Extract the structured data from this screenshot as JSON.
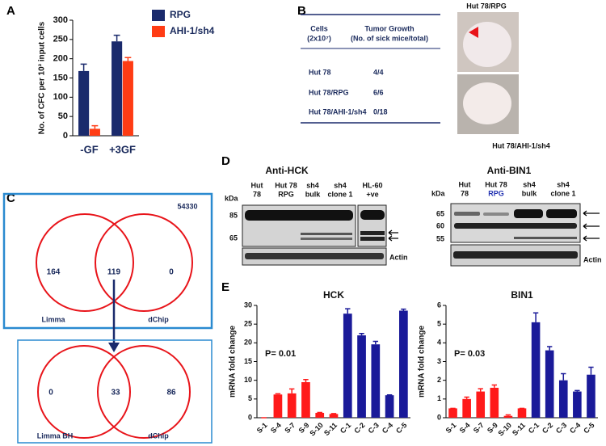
{
  "panel_labels": [
    "A",
    "B",
    "C",
    "D",
    "E"
  ],
  "chart_data": [
    {
      "type": "bar",
      "ylabel": "No. of CFC per 10³ input cells",
      "categories": [
        "-GF",
        "+3GF"
      ],
      "series": [
        {
          "name": "RPG",
          "color": "#1a2a6c",
          "values": [
            168,
            245
          ],
          "errors": [
            18,
            16
          ]
        },
        {
          "name": "AHI-1/sh4",
          "color": "#ff3c14",
          "values": [
            18,
            194
          ],
          "errors": [
            8,
            9
          ]
        }
      ],
      "ylim": [
        0,
        300
      ],
      "yticks": [
        0,
        50,
        100,
        150,
        200,
        250,
        300
      ],
      "grid": false,
      "legend": "right"
    },
    {
      "type": "bar",
      "title": "HCK",
      "ylabel": "mRNA fold change",
      "annotation": "P= 0.01",
      "categories": [
        "S-1",
        "S-4",
        "S-7",
        "S-9",
        "S-10",
        "S-11",
        "C-1",
        "C-2",
        "C-3",
        "C-4",
        "C-5"
      ],
      "values": [
        0,
        6.2,
        6.5,
        9.5,
        1.3,
        1.0,
        27.8,
        22,
        19.6,
        6,
        28.6
      ],
      "errors": [
        0,
        0.2,
        1.2,
        0.7,
        0.1,
        0.1,
        1.3,
        0.5,
        0.8,
        0.1,
        0.4
      ],
      "colors": [
        "#ff1a1a",
        "#ff1a1a",
        "#ff1a1a",
        "#ff1a1a",
        "#ff1a1a",
        "#ff1a1a",
        "#1a1a99",
        "#1a1a99",
        "#1a1a99",
        "#1a1a99",
        "#1a1a99"
      ],
      "ylim": [
        0,
        30
      ],
      "yticks": [
        0,
        5,
        10,
        15,
        20,
        25,
        30
      ],
      "grid": false
    },
    {
      "type": "bar",
      "title": "BIN1",
      "ylabel": "mRNA fold change",
      "annotation": "P= 0.03",
      "categories": [
        "S-1",
        "S-4",
        "S-7",
        "S-9",
        "S-10",
        "S-11",
        "C-1",
        "C-2",
        "C-3",
        "C-4",
        "C-5"
      ],
      "values": [
        0.5,
        1.0,
        1.4,
        1.6,
        0.1,
        0.5,
        5.1,
        3.6,
        2.0,
        1.4,
        2.3
      ],
      "errors": [
        0,
        0.1,
        0.15,
        0.15,
        0.05,
        0,
        0.5,
        0.2,
        0.35,
        0.05,
        0.4
      ],
      "colors": [
        "#ff1a1a",
        "#ff1a1a",
        "#ff1a1a",
        "#ff1a1a",
        "#ff1a1a",
        "#ff1a1a",
        "#1a1a99",
        "#1a1a99",
        "#1a1a99",
        "#1a1a99",
        "#1a1a99"
      ],
      "ylim": [
        0,
        6
      ],
      "yticks": [
        0,
        1,
        2,
        3,
        4,
        5,
        6
      ],
      "grid": false
    }
  ],
  "table": {
    "header": [
      [
        "Cells",
        "(2x10⁷)"
      ],
      [
        "Tumor Growth",
        "(No. of sick mice/total)"
      ]
    ],
    "rows": [
      [
        "Hut 78",
        "4/4"
      ],
      [
        "Hut 78/RPG",
        "6/6"
      ],
      [
        "Hut 78/AHI-1/sh4",
        "0/18"
      ]
    ]
  },
  "photos": [
    "Hut 78/RPG",
    "Hut 78/AHI-1/sh4"
  ],
  "venn": [
    {
      "total": "54330",
      "sets": [
        "Limma",
        "dChip"
      ],
      "counts": [
        "164",
        "119",
        "0"
      ]
    },
    {
      "sets": [
        "Limma BH",
        "dChip"
      ],
      "counts": [
        "0",
        "33",
        "86"
      ]
    }
  ],
  "blots": [
    {
      "title": "Anti-HCK",
      "unit": "kDa",
      "lanes": [
        [
          "Hut",
          "78"
        ],
        [
          "Hut 78",
          "RPG"
        ],
        [
          "sh4",
          "bulk"
        ],
        [
          "sh4",
          "clone 1"
        ],
        [
          "HL-60",
          "+ve"
        ]
      ],
      "markers": [
        "85",
        "65"
      ],
      "loading": "Actin"
    },
    {
      "title": "Anti-BIN1",
      "unit": "kDa",
      "lanes": [
        [
          "Hut",
          "78"
        ],
        [
          "Hut 78",
          "RPG"
        ],
        [
          "sh4",
          "bulk"
        ],
        [
          "sh4",
          "clone 1"
        ]
      ],
      "markers": [
        "65",
        "60",
        "55"
      ],
      "loading": "Actin"
    }
  ]
}
